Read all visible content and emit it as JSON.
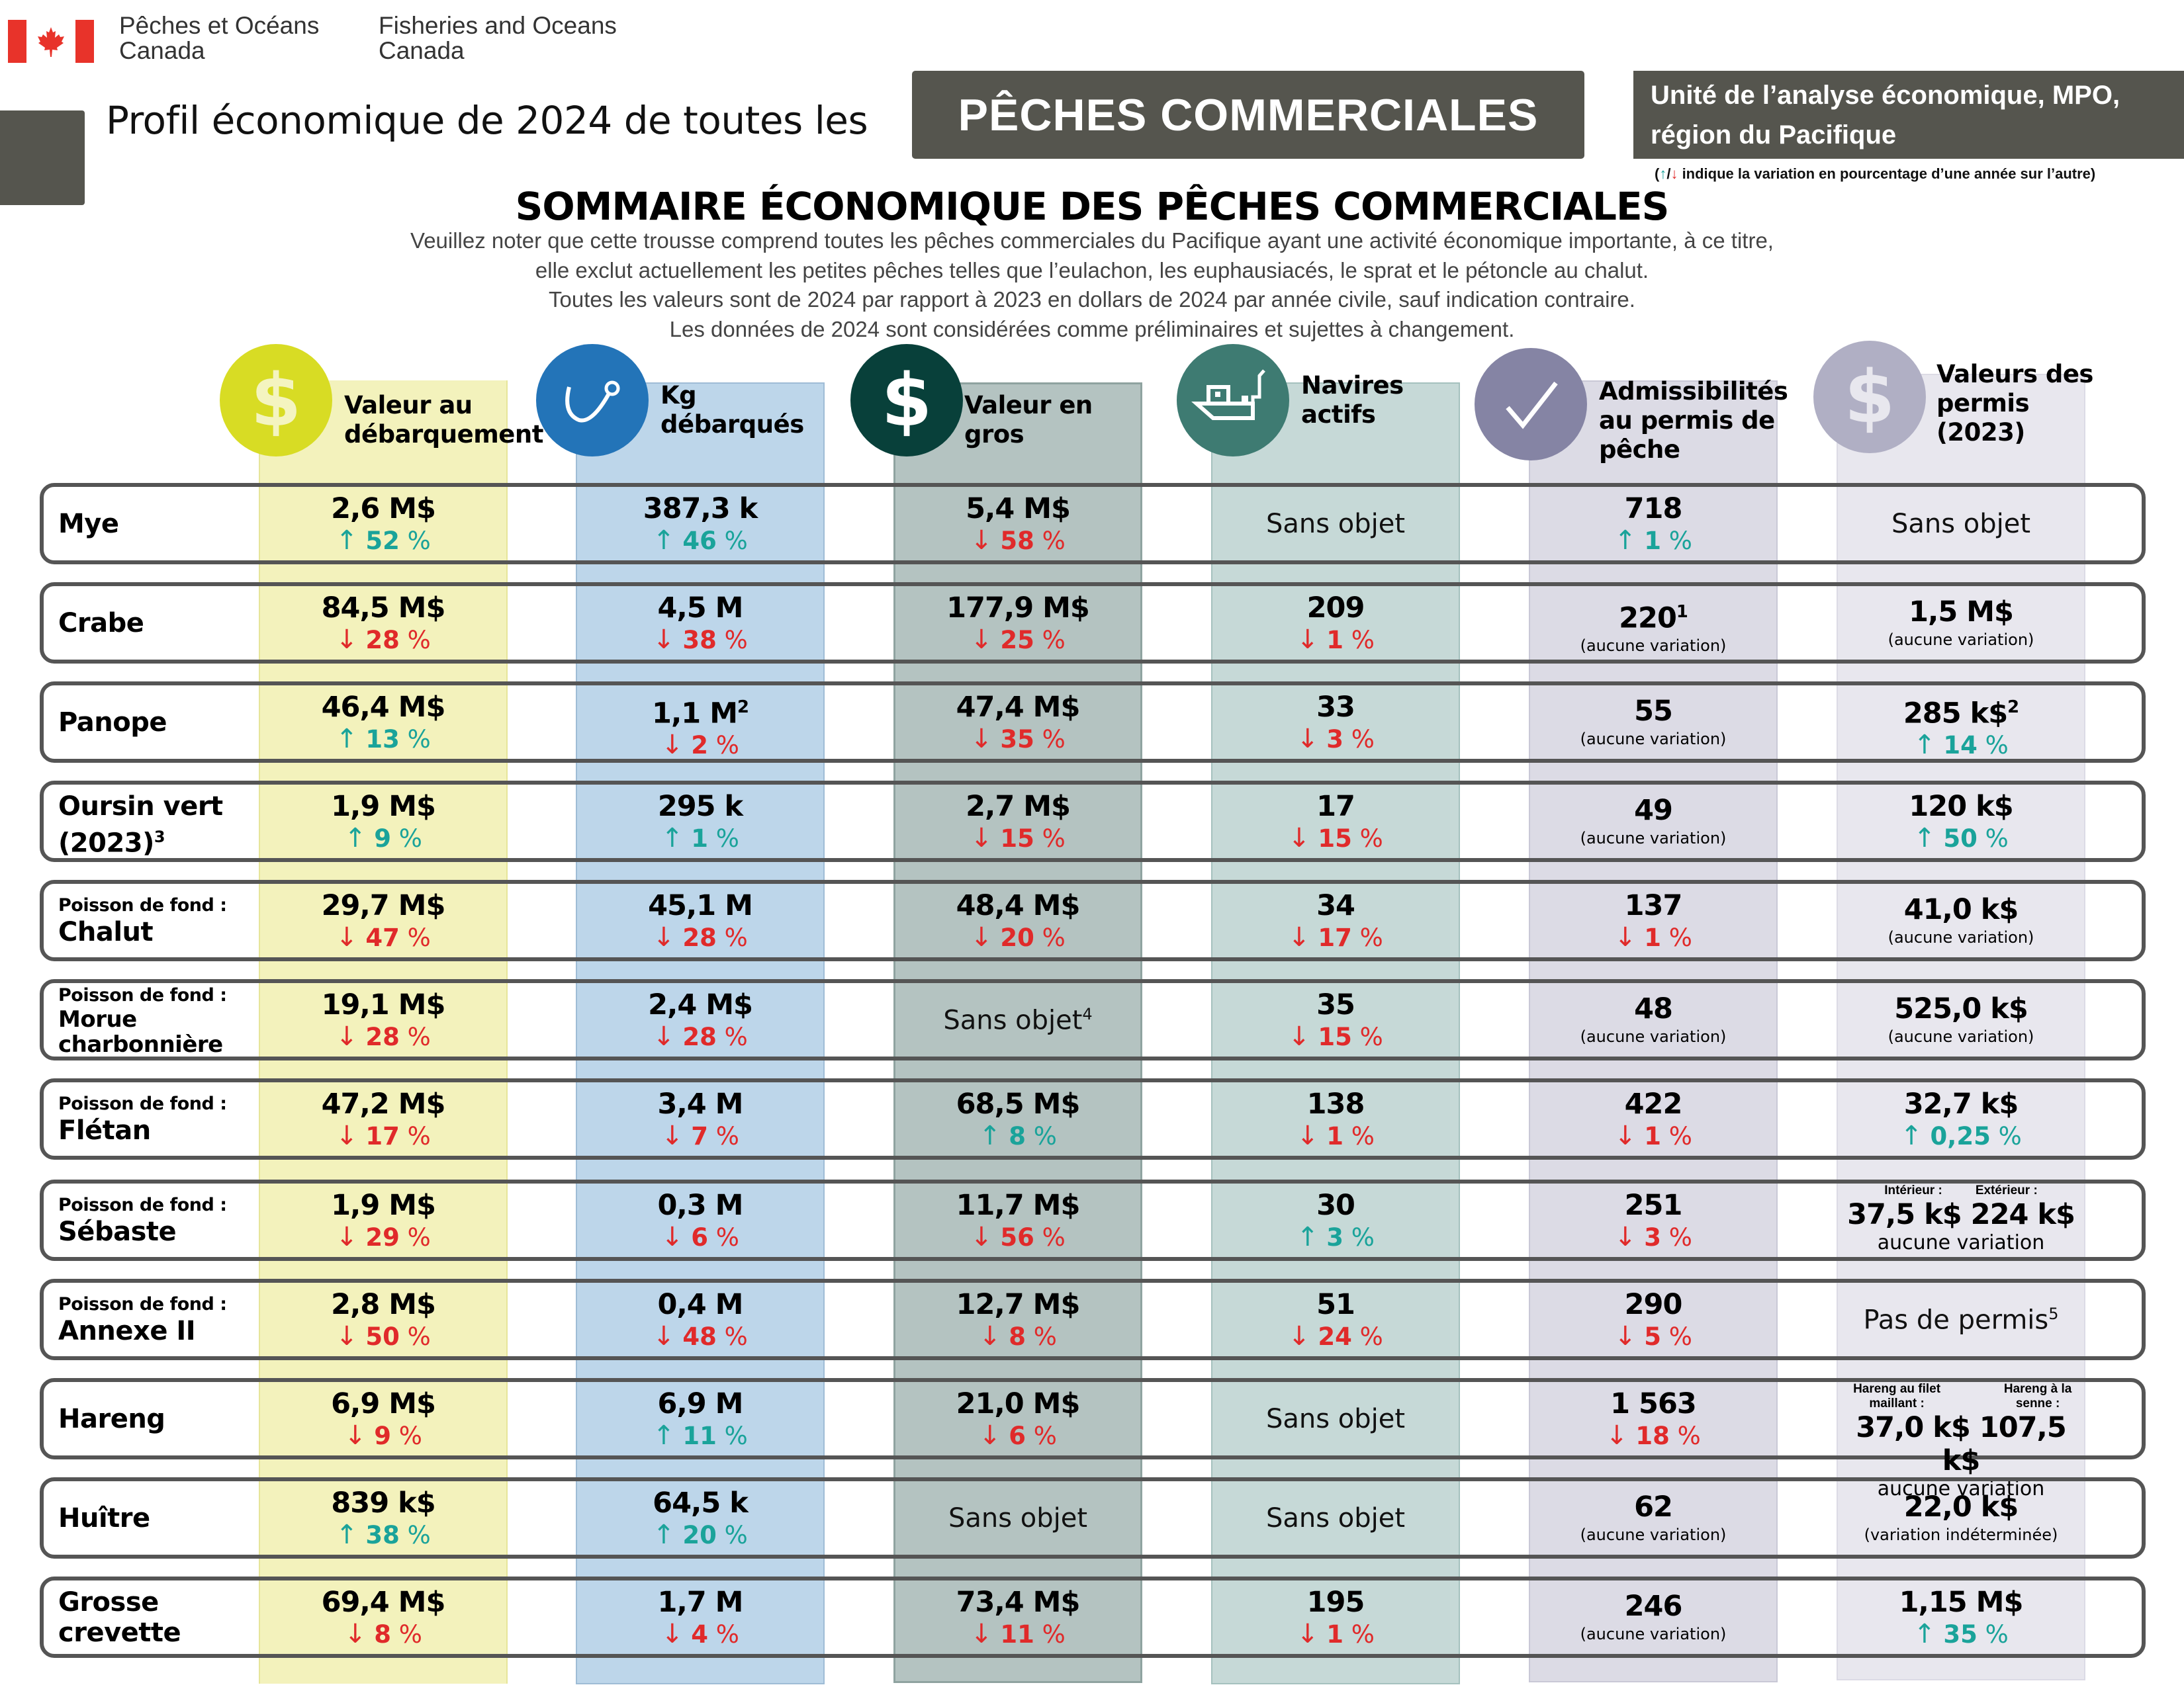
{
  "header": {
    "dept_fr": [
      "Pêches et Océans",
      "Canada"
    ],
    "dept_en": [
      "Fisheries and Oceans",
      "Canada"
    ],
    "profile_title": "Profil économique de 2024 de toutes les",
    "profile_pill": "PÊCHES COMMERCIALES",
    "unit_line1": "Unité de l’analyse économique, MPO,",
    "unit_line2": "région du Pacifique",
    "legend_open": "(",
    "legend_up": "↑",
    "legend_sep": "/",
    "legend_down": "↓",
    "legend_text": " indique la variation en pourcentage d’une année sur l’autre)"
  },
  "summary": {
    "title": "SOMMAIRE ÉCONOMIQUE DES PÊCHES COMMERCIALES",
    "notes": [
      "Veuillez noter que cette trousse comprend toutes les pêches commerciales du Pacifique ayant une activité économique importante, à ce titre,",
      "elle exclut actuellement les petites pêches telles que l’eulachon, les euphausiacés, le sprat et le pétoncle au chalut.",
      "Toutes les valeurs sont de 2024 par rapport à 2023 en dollars de 2024 par année civile, sauf indication contraire.",
      "Les données de 2024 sont considérées comme préliminaires et sujettes à changement."
    ]
  },
  "colors": {
    "up": "#1aa39a",
    "down": "#e02a2a",
    "header_grey": "#55554e",
    "col1_icon": "#d8dc24",
    "col2_icon": "#2374b8",
    "col3_icon": "#08403a",
    "col4_icon": "#3e7b72",
    "col5_icon": "#8584a4",
    "col6_icon": "#b0afc4"
  },
  "columns": [
    {
      "icon": "dollar-icon",
      "label_lines": [
        "Valeur au",
        "débarquement"
      ]
    },
    {
      "icon": "hook-icon",
      "label_lines": [
        "Kg",
        "débarqués"
      ]
    },
    {
      "icon": "dollar-icon",
      "label_lines": [
        "Valeur en",
        "gros"
      ]
    },
    {
      "icon": "boat-icon",
      "label_lines": [
        "Navires",
        "actifs"
      ]
    },
    {
      "icon": "checkmark-icon",
      "label_lines": [
        "Admissibilités",
        "au permis de",
        "pêche"
      ]
    },
    {
      "icon": "dollar-icon",
      "label_lines": [
        "Valeurs des",
        "permis",
        "(2023)"
      ]
    }
  ],
  "labels": {
    "no_change": "(aucune variation)",
    "no_change_plain": "aucune variation",
    "undetermined": "(variation indéterminée)",
    "na": "Sans objet",
    "no_permit": "Pas de permis",
    "interior": "Intérieur :",
    "exterior": "Extérieur :",
    "gillnet": "Hareng au filet maillant :",
    "seine": "Hareng à la senne :"
  },
  "rows": [
    {
      "cat": "",
      "name": "Mye",
      "landed_value": {
        "v": "2,6 M$",
        "dir": "up",
        "pct": "52"
      },
      "kg": {
        "v": "387,3 k",
        "dir": "up",
        "pct": "46"
      },
      "wholesale": {
        "v": "5,4 M$",
        "dir": "down",
        "pct": "58"
      },
      "vessels": {
        "na": "Sans objet"
      },
      "eligibilities": {
        "v": "718",
        "dir": "up",
        "pct": "1"
      },
      "permit_value": {
        "na": "Sans objet"
      }
    },
    {
      "cat": "",
      "name": "Crabe",
      "landed_value": {
        "v": "84,5 M$",
        "dir": "down",
        "pct": "28"
      },
      "kg": {
        "v": "4,5 M",
        "dir": "down",
        "pct": "38"
      },
      "wholesale": {
        "v": "177,9 M$",
        "dir": "down",
        "pct": "25"
      },
      "vessels": {
        "v": "209",
        "dir": "down",
        "pct": "1"
      },
      "eligibilities": {
        "v": "220",
        "sup": "1",
        "note": "(aucune variation)"
      },
      "permit_value": {
        "v": "1,5 M$",
        "note": "(aucune variation)"
      }
    },
    {
      "cat": "",
      "name": "Panope",
      "landed_value": {
        "v": "46,4 M$",
        "dir": "up",
        "pct": "13"
      },
      "kg": {
        "v": "1,1 M",
        "sup": "2",
        "dir": "down",
        "pct": "2"
      },
      "wholesale": {
        "v": "47,4 M$",
        "dir": "down",
        "pct": "35"
      },
      "vessels": {
        "v": "33",
        "dir": "down",
        "pct": "3"
      },
      "eligibilities": {
        "v": "55",
        "note": "(aucune variation)"
      },
      "permit_value": {
        "v": "285 k$",
        "sup": "2",
        "dir": "up",
        "pct": "14"
      }
    },
    {
      "cat": "",
      "name": "Oursin vert",
      "name2": "(2023)",
      "name_sup": "3",
      "landed_value": {
        "v": "1,9 M$",
        "dir": "up",
        "pct": "9"
      },
      "kg": {
        "v": "295 k",
        "dir": "up",
        "pct": "1"
      },
      "wholesale": {
        "v": "2,7 M$",
        "dir": "down",
        "pct": "15"
      },
      "vessels": {
        "v": "17",
        "dir": "down",
        "pct": "15"
      },
      "eligibilities": {
        "v": "49",
        "note": "(aucune variation)"
      },
      "permit_value": {
        "v": "120 k$",
        "dir": "up",
        "pct": "50"
      }
    },
    {
      "cat": "Poisson de fond :",
      "name": "Chalut",
      "landed_value": {
        "v": "29,7 M$",
        "dir": "down",
        "pct": "47"
      },
      "kg": {
        "v": "45,1 M",
        "dir": "down",
        "pct": "28"
      },
      "wholesale": {
        "v": "48,4 M$",
        "dir": "down",
        "pct": "20"
      },
      "vessels": {
        "v": "34",
        "dir": "down",
        "pct": "17"
      },
      "eligibilities": {
        "v": "137",
        "dir": "down",
        "pct": "1"
      },
      "permit_value": {
        "v": "41,0 k$",
        "note": "(aucune variation)"
      }
    },
    {
      "cat": "Poisson de fond :",
      "name": "Morue",
      "name2": "charbonnière",
      "landed_value": {
        "v": "19,1 M$",
        "dir": "down",
        "pct": "28"
      },
      "kg": {
        "v": "2,4 M$",
        "dir": "down",
        "pct": "28"
      },
      "wholesale": {
        "na": "Sans objet",
        "sup": "4"
      },
      "vessels": {
        "v": "35",
        "dir": "down",
        "pct": "15"
      },
      "eligibilities": {
        "v": "48",
        "note": "(aucune variation)"
      },
      "permit_value": {
        "v": "525,0 k$",
        "note": "(aucune variation)"
      }
    },
    {
      "cat": "Poisson de fond :",
      "name": "Flétan",
      "landed_value": {
        "v": "47,2 M$",
        "dir": "down",
        "pct": "17"
      },
      "kg": {
        "v": "3,4 M",
        "dir": "down",
        "pct": "7"
      },
      "wholesale": {
        "v": "68,5 M$",
        "dir": "up",
        "pct": "8"
      },
      "vessels": {
        "v": "138",
        "dir": "down",
        "pct": "1"
      },
      "eligibilities": {
        "v": "422",
        "dir": "down",
        "pct": "1"
      },
      "permit_value": {
        "v": "32,7 k$",
        "dir": "up",
        "pct": "0,25"
      }
    },
    {
      "cat": "Poisson de fond :",
      "name": "Sébaste",
      "landed_value": {
        "v": "1,9 M$",
        "dir": "down",
        "pct": "29"
      },
      "kg": {
        "v": "0,3 M",
        "dir": "down",
        "pct": "6"
      },
      "wholesale": {
        "v": "11,7 M$",
        "dir": "down",
        "pct": "56"
      },
      "vessels": {
        "v": "30",
        "dir": "up",
        "pct": "3"
      },
      "eligibilities": {
        "v": "251",
        "dir": "down",
        "pct": "3"
      },
      "permit_value": {
        "split": true,
        "a_label": "Intérieur :",
        "b_label": "Extérieur :",
        "v": "37,5 k$ 224 k$",
        "note": "aucune variation"
      }
    },
    {
      "cat": "Poisson de fond :",
      "name": "Annexe II",
      "landed_value": {
        "v": "2,8 M$",
        "dir": "down",
        "pct": "50"
      },
      "kg": {
        "v": "0,4 M",
        "dir": "down",
        "pct": "48"
      },
      "wholesale": {
        "v": "12,7 M$",
        "dir": "down",
        "pct": "8"
      },
      "vessels": {
        "v": "51",
        "dir": "down",
        "pct": "24"
      },
      "eligibilities": {
        "v": "290",
        "dir": "down",
        "pct": "5"
      },
      "permit_value": {
        "na": "Pas de permis",
        "sup": "5"
      }
    },
    {
      "cat": "",
      "name": "Hareng",
      "landed_value": {
        "v": "6,9 M$",
        "dir": "down",
        "pct": "9"
      },
      "kg": {
        "v": "6,9 M",
        "dir": "up",
        "pct": "11"
      },
      "wholesale": {
        "v": "21,0 M$",
        "dir": "down",
        "pct": "6"
      },
      "vessels": {
        "na": "Sans objet"
      },
      "eligibilities": {
        "v": "1 563",
        "dir": "down",
        "pct": "18"
      },
      "permit_value": {
        "split": true,
        "a_label": "Hareng au filet maillant :",
        "b_label": "Hareng à la senne :",
        "v": "37,0 k$ 107,5 k$",
        "note": "aucune variation"
      }
    },
    {
      "cat": "",
      "name": "Huître",
      "landed_value": {
        "v": "839 k$",
        "dir": "up",
        "pct": "38"
      },
      "kg": {
        "v": "64,5 k",
        "dir": "up",
        "pct": "20"
      },
      "wholesale": {
        "na": "Sans objet"
      },
      "vessels": {
        "na": "Sans objet"
      },
      "eligibilities": {
        "v": "62",
        "note": "(aucune variation)"
      },
      "permit_value": {
        "v": "22,0 k$",
        "note": "(variation indéterminée)"
      }
    },
    {
      "cat": "",
      "name": "Grosse",
      "name2": "crevette",
      "landed_value": {
        "v": "69,4 M$",
        "dir": "down",
        "pct": "8"
      },
      "kg": {
        "v": "1,7 M",
        "dir": "down",
        "pct": "4"
      },
      "wholesale": {
        "v": "73,4 M$",
        "dir": "down",
        "pct": "11"
      },
      "vessels": {
        "v": "195",
        "dir": "down",
        "pct": "1"
      },
      "eligibilities": {
        "v": "246",
        "note": "(aucune variation)"
      },
      "permit_value": {
        "v": "1,15 M$",
        "dir": "up",
        "pct": "35"
      }
    }
  ]
}
